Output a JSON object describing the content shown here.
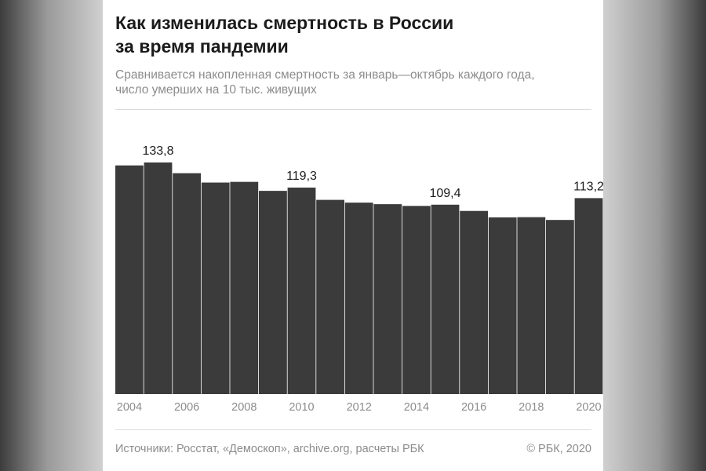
{
  "title_line1": "Как изменилась смертность в России",
  "title_line2": "за время пандемии",
  "subtitle_line1": "Сравнивается накопленная смертность за январь—октябрь каждого года,",
  "subtitle_line2": "число умерших на 10 тыс. живущих",
  "footer": {
    "sources": "Источники: Росстат, «Демоскоп», archive.org, расчеты РБК",
    "copyright": "© РБК, 2020"
  },
  "colors": {
    "bar": "#3b3b3b",
    "background": "#ffffff"
  },
  "chart_data": {
    "type": "bar",
    "categories": [
      "2004",
      "2005",
      "2006",
      "2007",
      "2008",
      "2009",
      "2010",
      "2011",
      "2012",
      "2013",
      "2014",
      "2015",
      "2016",
      "2017",
      "2018",
      "2019",
      "2020"
    ],
    "values": [
      132.1,
      133.8,
      127.6,
      122.2,
      122.6,
      117.4,
      119.3,
      112.2,
      110.6,
      109.7,
      108.7,
      109.4,
      105.8,
      102.1,
      102.2,
      100.6,
      113.2
    ],
    "data_labels": [
      {
        "category": "2005",
        "text": "133,8"
      },
      {
        "category": "2010",
        "text": "119,3"
      },
      {
        "category": "2015",
        "text": "109,4"
      },
      {
        "category": "2020",
        "text": "113,2"
      }
    ],
    "x_tick_labels": [
      "2004",
      "2006",
      "2008",
      "2010",
      "2012",
      "2014",
      "2016",
      "2018",
      "2020"
    ],
    "xlabel": "",
    "ylabel": "",
    "ylim": [
      0,
      135
    ],
    "grid": false,
    "legend": "none"
  }
}
